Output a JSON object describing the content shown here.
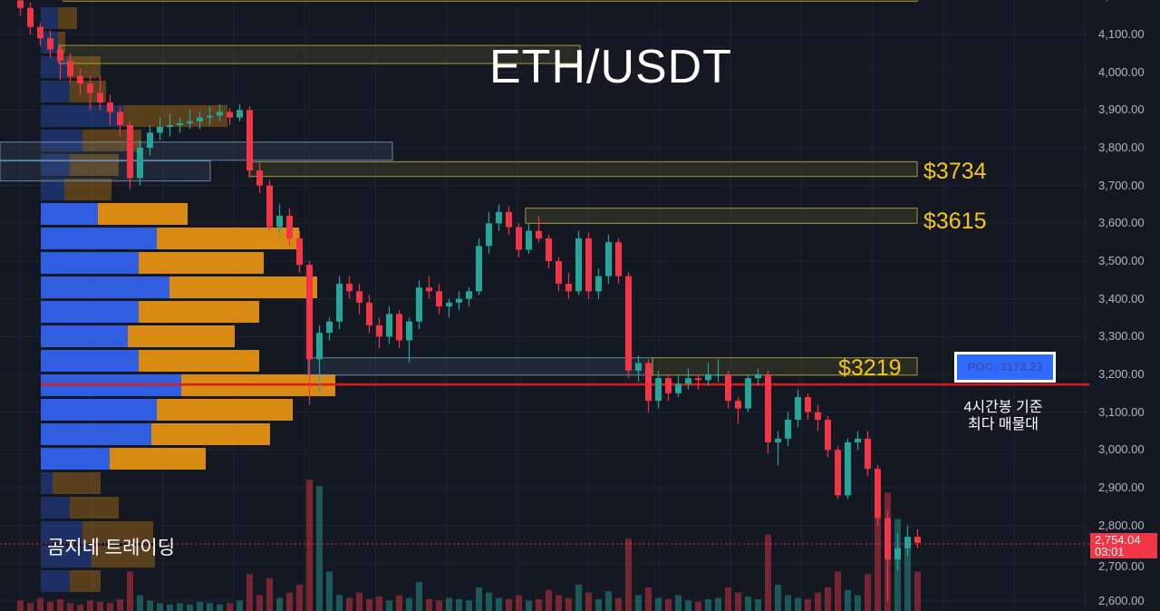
{
  "chart_data": {
    "type": "candlestick",
    "title": "ETH/USDT",
    "ylim": [
      2580,
      4200
    ],
    "y_ticks": [
      "4,200.00",
      "4,100.00",
      "4,000.00",
      "3,900.00",
      "3,800.00",
      "3,700.00",
      "3,600.00",
      "3,500.00",
      "3,400.00",
      "3,300.00",
      "3,200.00",
      "3,100.00",
      "3,000.00",
      "2,900.00",
      "2,800.00",
      "2,700.00",
      "2,600.00"
    ],
    "y_tick_values": [
      4200,
      4100,
      4000,
      3900,
      3800,
      3700,
      3600,
      3500,
      3400,
      3300,
      3200,
      3100,
      3000,
      2900,
      2800,
      2700,
      2600
    ],
    "grid": true,
    "colors": {
      "up": "#26a69a",
      "down": "#f23645",
      "background": "#141823",
      "zone": "#c9b43a",
      "zone_blue": "#7d9bc7",
      "poc_line": "#e01919",
      "profile_buy": "#2f5ee0",
      "profile_sell": "#d98a12"
    },
    "candles": [
      [
        4190,
        4200,
        4150,
        4170
      ],
      [
        4170,
        4185,
        4100,
        4120
      ],
      [
        4120,
        4130,
        4070,
        4090
      ],
      [
        4090,
        4110,
        4040,
        4060
      ],
      [
        4060,
        4075,
        3980,
        4030
      ],
      [
        4030,
        4050,
        3970,
        3990
      ],
      [
        3990,
        4010,
        3940,
        3970
      ],
      [
        3970,
        3990,
        3900,
        3945
      ],
      [
        3945,
        3990,
        3900,
        3920
      ],
      [
        3920,
        3940,
        3860,
        3895
      ],
      [
        3895,
        3910,
        3830,
        3860
      ],
      [
        3860,
        3870,
        3690,
        3720
      ],
      [
        3720,
        3820,
        3700,
        3800
      ],
      [
        3800,
        3860,
        3780,
        3840
      ],
      [
        3840,
        3880,
        3820,
        3855
      ],
      [
        3855,
        3890,
        3830,
        3860
      ],
      [
        3860,
        3880,
        3840,
        3865
      ],
      [
        3865,
        3900,
        3850,
        3870
      ],
      [
        3870,
        3895,
        3850,
        3880
      ],
      [
        3880,
        3910,
        3860,
        3885
      ],
      [
        3885,
        3915,
        3870,
        3895
      ],
      [
        3895,
        3905,
        3860,
        3880
      ],
      [
        3880,
        3915,
        3870,
        3900
      ],
      [
        3900,
        3910,
        3720,
        3740
      ],
      [
        3740,
        3760,
        3680,
        3700
      ],
      [
        3700,
        3715,
        3580,
        3590
      ],
      [
        3590,
        3650,
        3570,
        3620
      ],
      [
        3620,
        3640,
        3540,
        3560
      ],
      [
        3560,
        3580,
        3470,
        3490
      ],
      [
        3490,
        3500,
        3120,
        3240
      ],
      [
        3240,
        3330,
        3150,
        3310
      ],
      [
        3310,
        3350,
        3290,
        3340
      ],
      [
        3340,
        3460,
        3320,
        3440
      ],
      [
        3440,
        3460,
        3400,
        3420
      ],
      [
        3420,
        3440,
        3360,
        3390
      ],
      [
        3390,
        3410,
        3310,
        3330
      ],
      [
        3330,
        3350,
        3270,
        3300
      ],
      [
        3300,
        3380,
        3280,
        3360
      ],
      [
        3360,
        3370,
        3270,
        3290
      ],
      [
        3290,
        3350,
        3230,
        3340
      ],
      [
        3340,
        3450,
        3320,
        3430
      ],
      [
        3430,
        3460,
        3400,
        3420
      ],
      [
        3420,
        3440,
        3360,
        3380
      ],
      [
        3380,
        3400,
        3350,
        3390
      ],
      [
        3390,
        3420,
        3370,
        3400
      ],
      [
        3400,
        3430,
        3380,
        3420
      ],
      [
        3420,
        3560,
        3410,
        3540
      ],
      [
        3540,
        3630,
        3520,
        3600
      ],
      [
        3600,
        3650,
        3580,
        3630
      ],
      [
        3630,
        3645,
        3570,
        3590
      ],
      [
        3590,
        3600,
        3510,
        3530
      ],
      [
        3530,
        3600,
        3520,
        3580
      ],
      [
        3580,
        3620,
        3550,
        3560
      ],
      [
        3560,
        3570,
        3480,
        3500
      ],
      [
        3500,
        3510,
        3420,
        3440
      ],
      [
        3440,
        3470,
        3400,
        3420
      ],
      [
        3420,
        3580,
        3410,
        3560
      ],
      [
        3560,
        3575,
        3400,
        3420
      ],
      [
        3420,
        3480,
        3400,
        3460
      ],
      [
        3460,
        3570,
        3440,
        3550
      ],
      [
        3550,
        3560,
        3440,
        3460
      ],
      [
        3460,
        3470,
        3190,
        3210
      ],
      [
        3210,
        3250,
        3180,
        3230
      ],
      [
        3230,
        3240,
        3100,
        3130
      ],
      [
        3130,
        3210,
        3110,
        3190
      ],
      [
        3190,
        3200,
        3130,
        3150
      ],
      [
        3150,
        3200,
        3140,
        3175
      ],
      [
        3175,
        3215,
        3160,
        3190
      ],
      [
        3190,
        3200,
        3160,
        3185
      ],
      [
        3185,
        3230,
        3170,
        3200
      ],
      [
        3200,
        3240,
        3180,
        3200
      ],
      [
        3200,
        3210,
        3110,
        3130
      ],
      [
        3130,
        3140,
        3070,
        3110
      ],
      [
        3110,
        3200,
        3100,
        3190
      ],
      [
        3190,
        3215,
        3170,
        3200
      ],
      [
        3200,
        3210,
        2990,
        3020
      ],
      [
        3020,
        3050,
        2960,
        3030
      ],
      [
        3030,
        3100,
        3010,
        3080
      ],
      [
        3080,
        3160,
        3060,
        3140
      ],
      [
        3140,
        3150,
        3080,
        3100
      ],
      [
        3100,
        3120,
        3050,
        3080
      ],
      [
        3080,
        3090,
        2980,
        3000
      ],
      [
        3000,
        3010,
        2870,
        2880
      ],
      [
        2880,
        3030,
        2870,
        3020
      ],
      [
        3020,
        3050,
        3000,
        3030
      ],
      [
        3030,
        3050,
        2930,
        2950
      ],
      [
        2950,
        2960,
        2800,
        2820
      ],
      [
        2820,
        2840,
        2600,
        2710
      ],
      [
        2710,
        2780,
        2680,
        2740
      ],
      [
        2740,
        2800,
        2720,
        2770
      ],
      [
        2770,
        2790,
        2740,
        2754.04
      ]
    ],
    "volume": [
      8,
      6,
      10,
      7,
      9,
      6,
      5,
      8,
      7,
      6,
      9,
      30,
      12,
      8,
      6,
      5,
      6,
      5,
      7,
      6,
      5,
      6,
      8,
      28,
      12,
      25,
      10,
      14,
      20,
      100,
      95,
      30,
      12,
      10,
      14,
      9,
      11,
      8,
      12,
      10,
      22,
      9,
      8,
      10,
      9,
      8,
      18,
      14,
      10,
      9,
      12,
      8,
      9,
      16,
      12,
      10,
      20,
      14,
      9,
      15,
      10,
      55,
      12,
      18,
      10,
      9,
      12,
      8,
      7,
      9,
      10,
      18,
      14,
      11,
      9,
      58,
      20,
      12,
      10,
      9,
      14,
      18,
      30,
      16,
      12,
      28,
      82,
      90,
      70,
      50,
      30
    ],
    "volume_profile": {
      "buy": [
        19,
        19,
        29,
        32,
        91,
        46,
        32,
        26,
        63,
        128,
        108,
        142,
        108,
        96,
        108,
        155,
        128,
        122,
        76,
        13,
        32,
        46,
        56,
        32
      ],
      "sell": [
        21,
        8,
        37,
        40,
        115,
        65,
        54,
        52,
        99,
        157,
        138,
        163,
        133,
        118,
        133,
        170,
        150,
        131,
        106,
        53,
        54,
        78,
        70,
        34
      ],
      "value_area_rows": [
        8,
        18
      ]
    },
    "zones": [
      {
        "low": 4188,
        "high": 4196,
        "color": "yellow",
        "label": ""
      },
      {
        "low": 4023,
        "high": 4071,
        "color": "yellow",
        "label": ""
      },
      {
        "low": 3767,
        "high": 3815,
        "color": "blue",
        "label": ""
      },
      {
        "low": 3712,
        "high": 3765,
        "color": "blue",
        "label": ""
      },
      {
        "low": 3724,
        "high": 3763,
        "color": "yellow",
        "label": "$3734"
      },
      {
        "low": 3600,
        "high": 3640,
        "color": "yellow",
        "label": "$3615"
      },
      {
        "low": 3198,
        "high": 3244,
        "color": "blue",
        "label": ""
      },
      {
        "low": 3198,
        "high": 3244,
        "color": "yellow",
        "label": "$3219"
      }
    ],
    "poc": {
      "price": 3173.23,
      "label": "POC: 3173.23",
      "annotation": "4시간봉 기준\n최다 매물대"
    },
    "last_price": {
      "price": "2,754.04",
      "countdown": "03:01"
    }
  },
  "watermark": "곰지네 트레이딩"
}
